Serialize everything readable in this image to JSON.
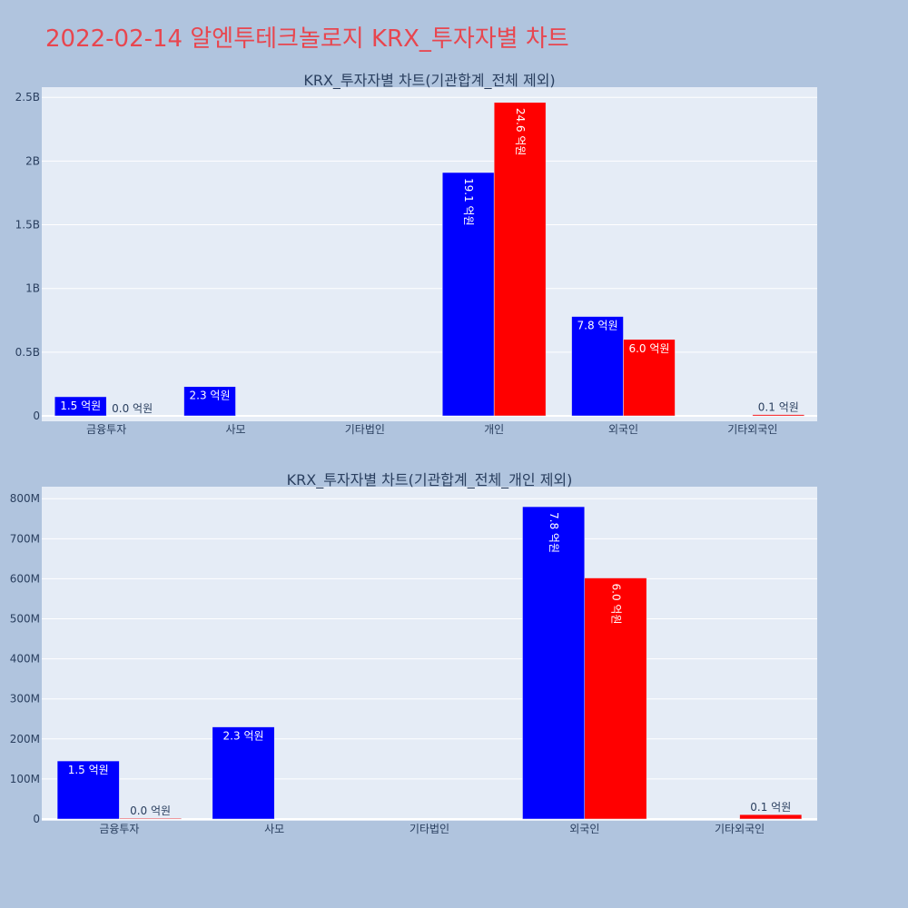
{
  "page": {
    "title": "2022-02-14 알엔투테크놀로지 KRX_투자자별 차트"
  },
  "colors": {
    "background": "#b0c4de",
    "plot_bg": "#e5ecf6",
    "title": "#e8464f",
    "series_buy": "#0000ff",
    "series_sell": "#ff0000"
  },
  "chart_data": [
    {
      "type": "bar",
      "title": "KRX_투자자별 차트(기관합계_전체 제외)",
      "categories": [
        "금융투자",
        "사모",
        "기타법인",
        "개인",
        "외국인",
        "기타외국인"
      ],
      "series": [
        {
          "color": "#0000ff",
          "values": [
            150000000,
            230000000,
            0,
            1910000000,
            780000000,
            0
          ],
          "labels": [
            "1.5 억원",
            "2.3 억원",
            "",
            "19.1 억원",
            "7.8 억원",
            ""
          ]
        },
        {
          "color": "#ff0000",
          "values": [
            0,
            0,
            0,
            2460000000,
            600000000,
            10000000
          ],
          "labels": [
            "0.0 억원",
            "",
            "",
            "24.6 억원",
            "6.0 억원",
            "0.1 억원"
          ]
        }
      ],
      "ylim": [
        0,
        2580000000
      ],
      "yticks": [
        0,
        500000000,
        1000000000,
        1500000000,
        2000000000,
        2500000000
      ],
      "ytick_labels": [
        "0",
        "0.5B",
        "1B",
        "1.5B",
        "2B",
        "2.5B"
      ],
      "grid": true
    },
    {
      "type": "bar",
      "title": "KRX_투자자별 차트(기관합계_전체_개인 제외)",
      "categories": [
        "금융투자",
        "사모",
        "기타법인",
        "외국인",
        "기타외국인"
      ],
      "series": [
        {
          "color": "#0000ff",
          "values": [
            145000000,
            230000000,
            0,
            780000000,
            0
          ],
          "labels": [
            "1.5 억원",
            "2.3 억원",
            "",
            "7.8 억원",
            ""
          ]
        },
        {
          "color": "#ff0000",
          "values": [
            2000000,
            0,
            0,
            602000000,
            11000000
          ],
          "labels": [
            "0.0 억원",
            "",
            "",
            "6.0 억원",
            "0.1 억원"
          ]
        }
      ],
      "ylim": [
        0,
        830000000
      ],
      "yticks": [
        0,
        100000000,
        200000000,
        300000000,
        400000000,
        500000000,
        600000000,
        700000000,
        800000000
      ],
      "ytick_labels": [
        "0",
        "100M",
        "200M",
        "300M",
        "400M",
        "500M",
        "600M",
        "700M",
        "800M"
      ],
      "grid": true
    }
  ]
}
